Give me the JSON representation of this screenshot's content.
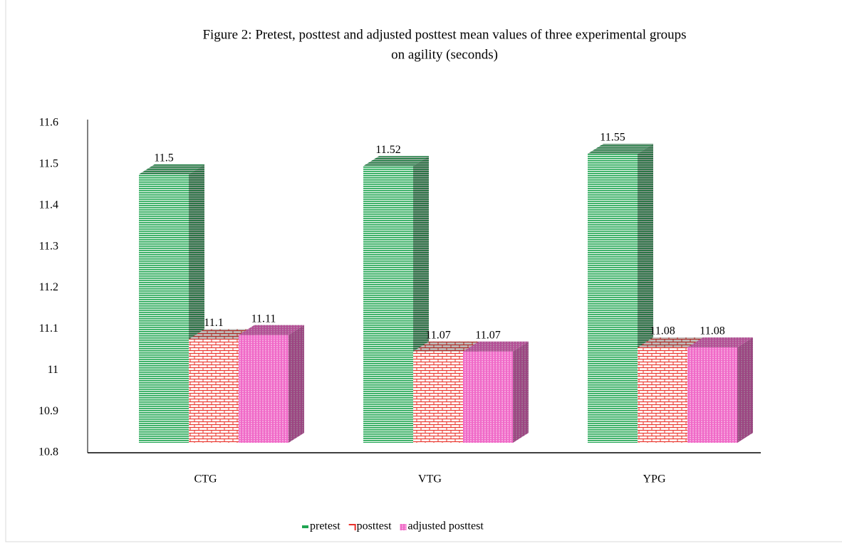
{
  "chart_data": {
    "type": "bar3d",
    "title": [
      "Figure 2: Pretest, posttest and adjusted posttest mean values of three experimental groups",
      "on agility (seconds)"
    ],
    "categories": [
      "CTG",
      "VTG",
      "YPG"
    ],
    "series": [
      {
        "name": "pretest",
        "color": "#1fa552",
        "values": [
          11.5,
          11.52,
          11.55
        ]
      },
      {
        "name": "posttest",
        "color": "#e8302a",
        "values": [
          11.1,
          11.07,
          11.08
        ]
      },
      {
        "name": "adjusted posttest",
        "color": "#f06ac8",
        "values": [
          11.11,
          11.07,
          11.08
        ]
      }
    ],
    "ylim": [
      10.8,
      11.6
    ],
    "yticks": [
      10.8,
      10.9,
      11,
      11.1,
      11.2,
      11.3,
      11.4,
      11.5,
      11.6
    ],
    "grid": false,
    "legend": "bottom"
  }
}
